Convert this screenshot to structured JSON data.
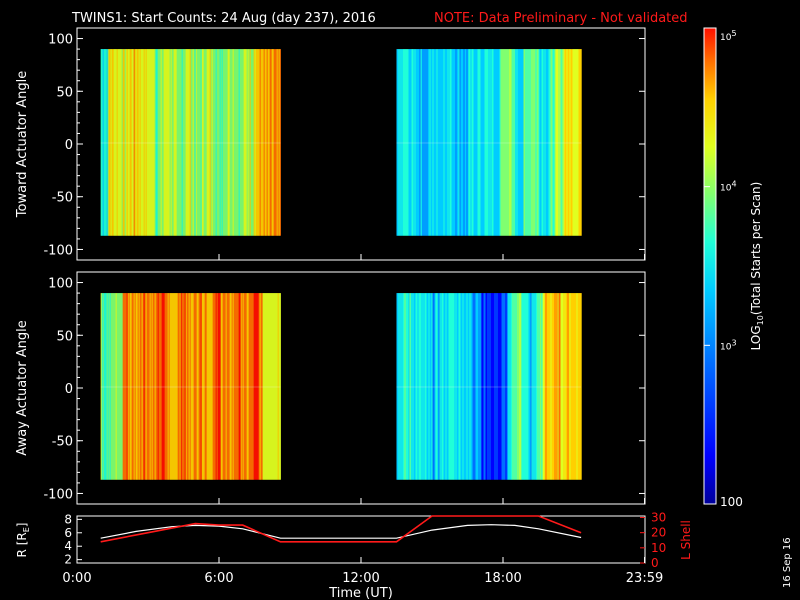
{
  "header": {
    "title": "TWINS1: Start Counts: 24 Aug (day 237), 2016",
    "note": "NOTE: Data Preliminary - Not validated"
  },
  "side_stamp": "16 Sep 16",
  "chart_data": [
    {
      "type": "heatmap",
      "ylabel": "Toward Actuator Angle",
      "ylim": [
        -110,
        110
      ],
      "yticks": [
        100,
        50,
        0,
        -50,
        -100
      ],
      "xlim": [
        0,
        24
      ],
      "segments": [
        {
          "start_hour": 1.0,
          "end_hour": 8.6
        },
        {
          "start_hour": 13.5,
          "end_hour": 21.3
        }
      ],
      "angle_range": [
        -87,
        90
      ]
    },
    {
      "type": "heatmap",
      "ylabel": "Away Actuator Angle",
      "ylim": [
        -110,
        110
      ],
      "yticks": [
        100,
        50,
        0,
        -50,
        -100
      ],
      "xlim": [
        0,
        24
      ],
      "segments": [
        {
          "start_hour": 1.0,
          "end_hour": 8.6
        },
        {
          "start_hour": 13.5,
          "end_hour": 21.3
        }
      ],
      "angle_range": [
        -87,
        90
      ]
    },
    {
      "type": "line",
      "xlabel": "Time (UT)",
      "xlim": [
        0,
        24
      ],
      "xticks": [
        {
          "hour": 0,
          "label": "0:00"
        },
        {
          "hour": 6,
          "label": "6:00"
        },
        {
          "hour": 12,
          "label": "12:00"
        },
        {
          "hour": 18,
          "label": "18:00"
        },
        {
          "hour": 23.98,
          "label": "23:59"
        }
      ],
      "left_axis": {
        "label": "R [R",
        "label_sub": "E",
        "label_close": "]",
        "ticks": [
          2,
          4,
          6,
          8
        ],
        "lim": [
          1.5,
          8.5
        ]
      },
      "right_axis": {
        "label": "L Shell",
        "ticks": [
          0,
          10,
          20,
          30
        ],
        "lim": [
          0,
          31
        ]
      },
      "series": [
        {
          "name": "R",
          "color": "#ffffff",
          "axis": "left",
          "points": [
            [
              1.0,
              5.2
            ],
            [
              2.5,
              6.2
            ],
            [
              4.0,
              6.9
            ],
            [
              5.0,
              7.1
            ],
            [
              6.0,
              7.0
            ],
            [
              7.0,
              6.6
            ],
            [
              8.6,
              5.2
            ],
            [
              13.5,
              5.2
            ],
            [
              15.0,
              6.4
            ],
            [
              16.5,
              7.1
            ],
            [
              17.5,
              7.2
            ],
            [
              18.5,
              7.1
            ],
            [
              19.5,
              6.6
            ],
            [
              21.3,
              5.3
            ]
          ]
        },
        {
          "name": "L Shell",
          "color": "#ff1a1a",
          "axis": "right",
          "points": [
            [
              1.0,
              14
            ],
            [
              3.0,
              20
            ],
            [
              5.0,
              26
            ],
            [
              6.0,
              25
            ],
            [
              7.0,
              25
            ],
            [
              8.6,
              14
            ],
            [
              13.5,
              14
            ],
            [
              15.0,
              31
            ],
            [
              19.5,
              31
            ],
            [
              21.3,
              20
            ]
          ]
        }
      ]
    },
    {
      "type": "colorbar",
      "label": "LOG",
      "label_sub": "10",
      "label_rest": "(Total Starts per Scan)",
      "ticks": [
        {
          "value": 100000,
          "label": "10",
          "exp": "5"
        },
        {
          "value": 10000,
          "label": "10",
          "exp": "4"
        },
        {
          "value": 1000,
          "label": "10",
          "exp": "3"
        },
        {
          "value": 100,
          "label": "100",
          "exp": ""
        }
      ],
      "range": [
        100,
        100000
      ],
      "colors": [
        "#00009a",
        "#0000ff",
        "#0070ff",
        "#00ccff",
        "#20ffd8",
        "#80ff70",
        "#e0ff20",
        "#ffd000",
        "#ff7000",
        "#ff1000"
      ]
    }
  ]
}
